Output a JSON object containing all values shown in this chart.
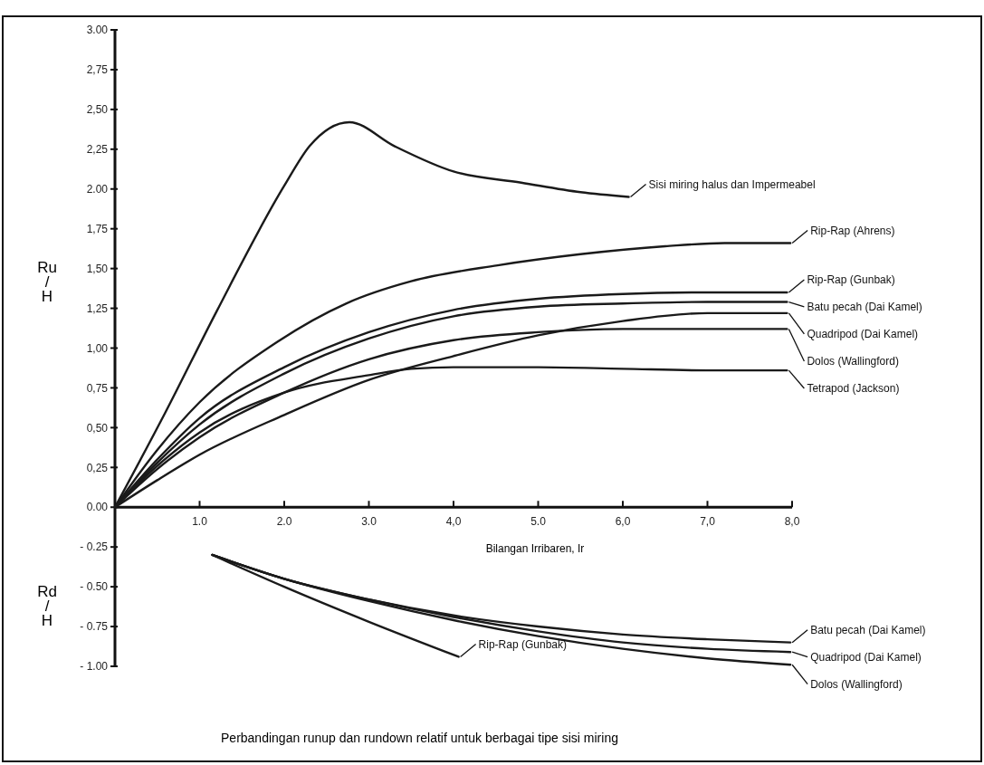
{
  "chart_data": {
    "type": "line",
    "title": "Perbandingan runup dan rundown relatif untuk berbagai tipe sisi miring",
    "xlabel": "Bilangan Irribaren, Ir",
    "ylabel": "Ru/H",
    "annotations": [
      "Rd/H"
    ],
    "xlim": [
      0,
      8
    ],
    "ylim": [
      -1,
      3
    ],
    "xticks": [
      {
        "value": 1,
        "label": "1.0"
      },
      {
        "value": 2,
        "label": "2.0"
      },
      {
        "value": 3,
        "label": "3.0"
      },
      {
        "value": 4,
        "label": "4,0"
      },
      {
        "value": 5,
        "label": "5.0"
      },
      {
        "value": 6,
        "label": "6,0"
      },
      {
        "value": 7,
        "label": "7,0"
      },
      {
        "value": 8,
        "label": "8,0"
      }
    ],
    "yticks": [
      {
        "value": 3,
        "label": "3.00"
      },
      {
        "value": 2.75,
        "label": "2,75"
      },
      {
        "value": 2.5,
        "label": "2,50"
      },
      {
        "value": 2.25,
        "label": "2,25"
      },
      {
        "value": 2,
        "label": "2.00"
      },
      {
        "value": 1.75,
        "label": "1,75"
      },
      {
        "value": 1.5,
        "label": "1,50"
      },
      {
        "value": 1.25,
        "label": "1,25"
      },
      {
        "value": 1,
        "label": "1,00"
      },
      {
        "value": 0.75,
        "label": "0,75"
      },
      {
        "value": 0.5,
        "label": "0,50"
      },
      {
        "value": 0.25,
        "label": "0,25"
      },
      {
        "value": 0,
        "label": "0.00"
      },
      {
        "value": -0.25,
        "label": "- 0.25"
      },
      {
        "value": -0.5,
        "label": "- 0.50"
      },
      {
        "value": -0.75,
        "label": "- 0.75"
      },
      {
        "value": -1,
        "label": "- 1.00"
      }
    ],
    "grid": false,
    "legend": "right",
    "marker": "none",
    "line_style": "solid",
    "series": [
      {
        "name": "Sisi miring halus dan Impermeabel",
        "color": "#1a1a1a",
        "x": [
          0,
          0.6,
          1.2,
          2.0,
          2.3,
          2.77,
          3.3,
          4.0,
          4.8,
          5.5,
          6.07
        ],
        "values": [
          0,
          0.6,
          1.23,
          2.02,
          2.27,
          2.42,
          2.27,
          2.11,
          2.04,
          1.98,
          1.95
        ]
      },
      {
        "name": "Rip-Rap (Ahrens)",
        "color": "#1a1a1a",
        "x": [
          0,
          0.5,
          1.0,
          1.92,
          2.73,
          3.5,
          4.52,
          5.5,
          6.5,
          7.2,
          7.98
        ],
        "values": [
          0,
          0.36,
          0.66,
          1.04,
          1.28,
          1.42,
          1.52,
          1.59,
          1.64,
          1.66,
          1.66
        ]
      },
      {
        "name": "Rip-Rap (Gunbak)",
        "color": "#1a1a1a",
        "x": [
          0,
          0.5,
          1.0,
          2.0,
          3.0,
          4.0,
          5.0,
          6.0,
          7.0,
          7.94
        ],
        "values": [
          0,
          0.3,
          0.56,
          0.88,
          1.1,
          1.24,
          1.31,
          1.34,
          1.35,
          1.35
        ]
      },
      {
        "name": "Batu pecah (Dai Kamel)",
        "color": "#1a1a1a",
        "x": [
          0,
          0.5,
          1.0,
          2.0,
          3.0,
          4.0,
          5.0,
          6.0,
          7.0,
          7.94
        ],
        "values": [
          0,
          0.28,
          0.52,
          0.84,
          1.06,
          1.2,
          1.26,
          1.28,
          1.29,
          1.29
        ]
      },
      {
        "name": "Quadripod (Dai Kamel)",
        "color": "#1a1a1a",
        "x": [
          0,
          0.5,
          1.0,
          2.0,
          3.0,
          4.0,
          5.0,
          6.0,
          7.0,
          7.94
        ],
        "values": [
          0,
          0.17,
          0.33,
          0.58,
          0.8,
          0.95,
          1.08,
          1.17,
          1.22,
          1.22
        ]
      },
      {
        "name": "Dolos  (Wallingford)",
        "color": "#1a1a1a",
        "x": [
          0,
          0.5,
          1.0,
          2.0,
          3.0,
          4.0,
          5.0,
          6.0,
          7.0,
          7.94
        ],
        "values": [
          0,
          0.24,
          0.44,
          0.72,
          0.93,
          1.05,
          1.1,
          1.12,
          1.12,
          1.12
        ]
      },
      {
        "name": "Tetrapod  (Jackson)",
        "color": "#1a1a1a",
        "x": [
          0,
          0.5,
          1.0,
          2.0,
          3.0,
          3.5,
          4.0,
          5.0,
          6.0,
          7.0,
          7.94
        ],
        "values": [
          0,
          0.26,
          0.47,
          0.72,
          0.83,
          0.87,
          0.88,
          0.88,
          0.87,
          0.86,
          0.86
        ]
      },
      {
        "name": "Batu pecah (Dai Kamel)",
        "color": "#1a1a1a",
        "x": [
          1.15,
          2.0,
          3.0,
          4.0,
          5.0,
          6.0,
          7.0,
          7.98
        ],
        "values": [
          -0.3,
          -0.45,
          -0.58,
          -0.68,
          -0.75,
          -0.8,
          -0.83,
          -0.85
        ]
      },
      {
        "name": "Quadripod (Dai Kamel)",
        "color": "#1a1a1a",
        "x": [
          1.15,
          2.0,
          3.0,
          4.0,
          5.0,
          6.0,
          7.0,
          7.98
        ],
        "values": [
          -0.3,
          -0.45,
          -0.58,
          -0.69,
          -0.78,
          -0.85,
          -0.89,
          -0.91
        ]
      },
      {
        "name": "Dolos  (Wallingford)",
        "color": "#1a1a1a",
        "x": [
          1.15,
          2.0,
          3.0,
          4.0,
          5.0,
          6.0,
          7.0,
          7.98
        ],
        "values": [
          -0.3,
          -0.45,
          -0.59,
          -0.71,
          -0.81,
          -0.89,
          -0.95,
          -0.99
        ]
      },
      {
        "name": "Rip-Rap (Gunbak)",
        "color": "#1a1a1a",
        "x": [
          1.15,
          2.0,
          3.0,
          4.06
        ],
        "values": [
          -0.3,
          -0.5,
          -0.72,
          -0.94
        ]
      }
    ]
  }
}
